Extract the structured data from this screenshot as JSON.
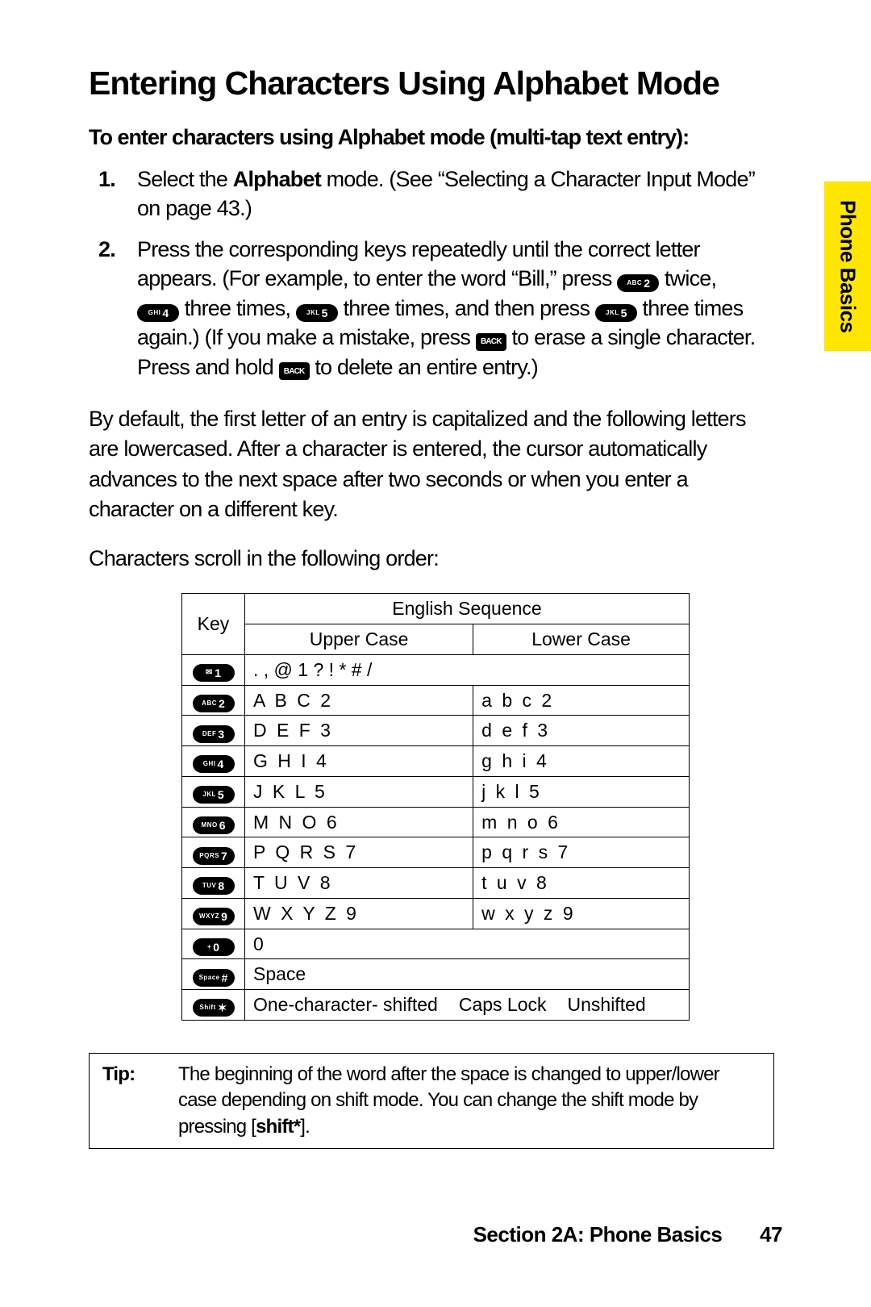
{
  "sideTab": "Phone Basics",
  "heading": "Entering Characters Using Alphabet Mode",
  "lead": "To enter characters using Alphabet mode (multi-tap text entry):",
  "step1": {
    "num": "1.",
    "pre": "Select the ",
    "bold": "Alphabet",
    "post": " mode. (See “Selecting a Character Input Mode” on page 43.)"
  },
  "step2": {
    "num": "2.",
    "a": "Press the corresponding keys repeatedly until the correct letter appears. (For example, to enter the word “Bill,” press ",
    "b": " twice, ",
    "c": " three times, ",
    "d": " three times, and then press ",
    "e": " three times again.) (If you make a mistake, press ",
    "f": " to erase a single character. Press and hold ",
    "g": " to delete an entire entry.)"
  },
  "para1": "By default, the first letter of an entry is capitalized and the following letters are lowercased. After a character is entered, the cursor automatically advances to the next space after two seconds or when you enter a character on a different key.",
  "para2": "Characters scroll in the following order:",
  "keys": {
    "abc2": {
      "sub": "ABC",
      "big": "2"
    },
    "def3": {
      "sub": "DEF",
      "big": "3"
    },
    "ghi4": {
      "sub": "GHI",
      "big": "4"
    },
    "jkl5": {
      "sub": "JKL",
      "big": "5"
    },
    "mno6": {
      "sub": "MNO",
      "big": "6"
    },
    "pqrs7": {
      "sub": "PQRS",
      "big": "7"
    },
    "tuv8": {
      "sub": "TUV",
      "big": "8"
    },
    "wxyz9": {
      "sub": "WXYZ",
      "big": "9"
    },
    "plus0": {
      "sub": "+",
      "big": "0"
    },
    "space": {
      "sub": "Space",
      "big": "#"
    },
    "shift": {
      "sub": "Shift",
      "big": "✶"
    },
    "mail1": {
      "sub": "",
      "big": "1"
    },
    "back": "BACK"
  },
  "table": {
    "hKey": "Key",
    "hEng": "English Sequence",
    "hUpper": "Upper Case",
    "hLower": "Lower Case",
    "rows": [
      {
        "key": "mail1",
        "full": ". , @ 1 ? ! * # /"
      },
      {
        "key": "abc2",
        "u": "A B C 2",
        "l": "a b c 2"
      },
      {
        "key": "def3",
        "u": "D E F 3",
        "l": "d e f 3"
      },
      {
        "key": "ghi4",
        "u": "G H I 4",
        "l": "g h i 4"
      },
      {
        "key": "jkl5",
        "u": "J K L 5",
        "l": "j k l 5"
      },
      {
        "key": "mno6",
        "u": "M N O 6",
        "l": "m n o 6"
      },
      {
        "key": "pqrs7",
        "u": "P Q R S 7",
        "l": "p q r s 7"
      },
      {
        "key": "tuv8",
        "u": "T U V 8",
        "l": "t u v 8"
      },
      {
        "key": "wxyz9",
        "u": "W X Y Z 9",
        "l": "w x y z 9"
      },
      {
        "key": "plus0",
        "full": "0"
      },
      {
        "key": "space",
        "full": "Space"
      },
      {
        "key": "shift",
        "shift": [
          "One-character- shifted",
          "Caps Lock",
          "Unshifted"
        ]
      }
    ]
  },
  "tip": {
    "label": "Tip:",
    "a": "The beginning of the word after the space is changed to upper/lower case depending on shift mode. You can change the shift mode by pressing [",
    "bold": "shift*",
    "b": "]."
  },
  "footer": {
    "section": "Section 2A: Phone Basics",
    "page": "47"
  }
}
